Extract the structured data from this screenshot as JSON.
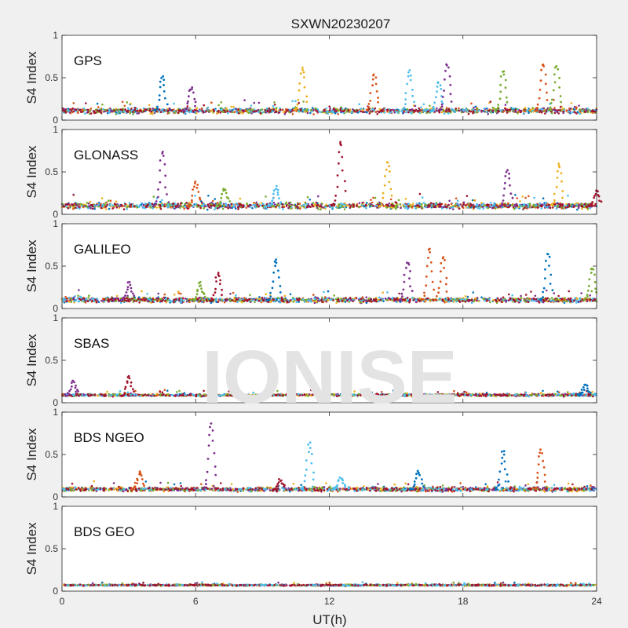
{
  "figure": {
    "title": "SXWN20230207",
    "watermark": "IONISE",
    "xlabel": "UT(h)",
    "ylabel": "S4 Index"
  },
  "colors": [
    "#0072bd",
    "#d95319",
    "#edb120",
    "#7e2f8e",
    "#77ac30",
    "#4dbeee",
    "#a2142f"
  ],
  "chart_data": [
    {
      "type": "scatter",
      "title": "GPS",
      "xlabel": "",
      "ylabel": "S4 Index",
      "xlim": [
        0,
        24
      ],
      "ylim": [
        0,
        1
      ],
      "x_ticks": [
        0,
        6,
        12,
        18,
        24
      ],
      "y_ticks": [
        0,
        0.5,
        1
      ],
      "grid": false,
      "baseline": 0.11,
      "noise": 0.045,
      "spikes": [
        {
          "x": 4.5,
          "y": 0.52,
          "c": 0
        },
        {
          "x": 5.8,
          "y": 0.38,
          "c": 3
        },
        {
          "x": 10.8,
          "y": 0.62,
          "c": 2
        },
        {
          "x": 14.0,
          "y": 0.55,
          "c": 1
        },
        {
          "x": 15.6,
          "y": 0.58,
          "c": 5
        },
        {
          "x": 16.9,
          "y": 0.45,
          "c": 5
        },
        {
          "x": 17.3,
          "y": 0.66,
          "c": 3
        },
        {
          "x": 19.8,
          "y": 0.58,
          "c": 4
        },
        {
          "x": 21.6,
          "y": 0.67,
          "c": 1
        },
        {
          "x": 22.2,
          "y": 0.63,
          "c": 4
        }
      ]
    },
    {
      "type": "scatter",
      "title": "GLONASS",
      "xlabel": "",
      "ylabel": "S4 Index",
      "xlim": [
        0,
        24
      ],
      "ylim": [
        0,
        1
      ],
      "x_ticks": [
        0,
        6,
        12,
        18,
        24
      ],
      "y_ticks": [
        0,
        0.5,
        1
      ],
      "grid": false,
      "baseline": 0.1,
      "noise": 0.05,
      "spikes": [
        {
          "x": 4.5,
          "y": 0.75,
          "c": 3
        },
        {
          "x": 6.0,
          "y": 0.38,
          "c": 1
        },
        {
          "x": 7.3,
          "y": 0.3,
          "c": 4
        },
        {
          "x": 9.6,
          "y": 0.32,
          "c": 5
        },
        {
          "x": 12.5,
          "y": 0.87,
          "c": 6
        },
        {
          "x": 14.6,
          "y": 0.62,
          "c": 2
        },
        {
          "x": 20.0,
          "y": 0.52,
          "c": 3
        },
        {
          "x": 22.3,
          "y": 0.6,
          "c": 2
        },
        {
          "x": 24.0,
          "y": 0.28,
          "c": 6
        }
      ]
    },
    {
      "type": "scatter",
      "title": "GALILEO",
      "xlabel": "",
      "ylabel": "S4 Index",
      "xlim": [
        0,
        24
      ],
      "ylim": [
        0,
        1
      ],
      "x_ticks": [
        0,
        6,
        12,
        18,
        24
      ],
      "y_ticks": [
        0,
        0.5,
        1
      ],
      "grid": false,
      "baseline": 0.1,
      "noise": 0.04,
      "spikes": [
        {
          "x": 3.0,
          "y": 0.3,
          "c": 3
        },
        {
          "x": 6.2,
          "y": 0.3,
          "c": 4
        },
        {
          "x": 7.0,
          "y": 0.42,
          "c": 6
        },
        {
          "x": 9.6,
          "y": 0.58,
          "c": 0
        },
        {
          "x": 15.5,
          "y": 0.55,
          "c": 3
        },
        {
          "x": 16.5,
          "y": 0.7,
          "c": 1
        },
        {
          "x": 17.1,
          "y": 0.6,
          "c": 1
        },
        {
          "x": 21.8,
          "y": 0.65,
          "c": 0
        },
        {
          "x": 23.8,
          "y": 0.48,
          "c": 4
        }
      ]
    },
    {
      "type": "scatter",
      "title": "SBAS",
      "xlabel": "",
      "ylabel": "S4 Index",
      "xlim": [
        0,
        24
      ],
      "ylim": [
        0,
        1
      ],
      "x_ticks": [
        0,
        6,
        12,
        18,
        24
      ],
      "y_ticks": [
        0,
        0.5,
        1
      ],
      "grid": false,
      "baseline": 0.09,
      "noise": 0.02,
      "spikes": [
        {
          "x": 0.5,
          "y": 0.25,
          "c": 3
        },
        {
          "x": 3.0,
          "y": 0.3,
          "c": 6
        },
        {
          "x": 23.5,
          "y": 0.2,
          "c": 0
        }
      ]
    },
    {
      "type": "scatter",
      "title": "BDS NGEO",
      "xlabel": "",
      "ylabel": "S4 Index",
      "xlim": [
        0,
        24
      ],
      "ylim": [
        0,
        1
      ],
      "x_ticks": [
        0,
        6,
        12,
        18,
        24
      ],
      "y_ticks": [
        0,
        0.5,
        1
      ],
      "grid": false,
      "baseline": 0.09,
      "noise": 0.035,
      "spikes": [
        {
          "x": 3.5,
          "y": 0.3,
          "c": 1
        },
        {
          "x": 6.7,
          "y": 0.86,
          "c": 3
        },
        {
          "x": 9.8,
          "y": 0.2,
          "c": 6
        },
        {
          "x": 11.1,
          "y": 0.63,
          "c": 5
        },
        {
          "x": 12.5,
          "y": 0.22,
          "c": 5
        },
        {
          "x": 16.0,
          "y": 0.3,
          "c": 0
        },
        {
          "x": 19.8,
          "y": 0.54,
          "c": 0
        },
        {
          "x": 21.5,
          "y": 0.55,
          "c": 1
        }
      ]
    },
    {
      "type": "scatter",
      "title": "BDS GEO",
      "xlabel": "UT(h)",
      "ylabel": "S4 Index",
      "xlim": [
        0,
        24
      ],
      "ylim": [
        0,
        1
      ],
      "x_ticks": [
        0,
        6,
        12,
        18,
        24
      ],
      "y_ticks": [
        0,
        0.5,
        1
      ],
      "grid": false,
      "baseline": 0.07,
      "noise": 0.012,
      "spikes": []
    }
  ]
}
